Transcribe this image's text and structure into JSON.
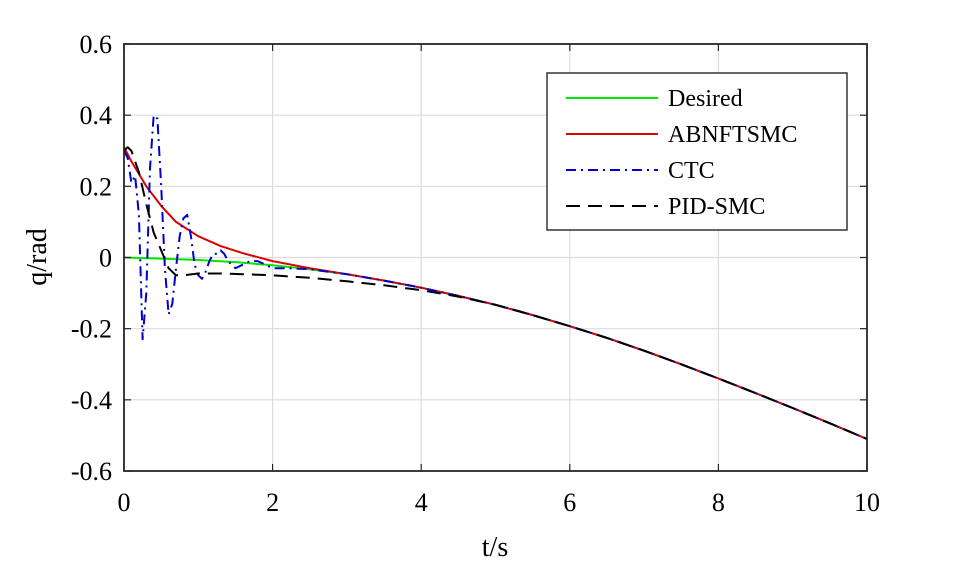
{
  "chart_data": {
    "type": "line",
    "title": "",
    "xlabel": "t/s",
    "ylabel": "q/rad",
    "xlim": [
      0,
      10
    ],
    "ylim": [
      -0.6,
      0.6
    ],
    "xticks": [
      0,
      2,
      4,
      6,
      8,
      10
    ],
    "yticks": [
      0.6,
      0.4,
      0.2,
      0,
      -0.2,
      -0.4,
      -0.6
    ],
    "xtick_labels": [
      "0",
      "2",
      "4",
      "6",
      "8",
      "10"
    ],
    "ytick_labels": [
      "0.6",
      "0.4",
      "0.2",
      "0",
      "-0.2",
      "-0.4",
      "-0.6"
    ],
    "grid": true,
    "legend_position": "top-right",
    "series": [
      {
        "name": "Desired",
        "color": "#00e600",
        "dash": "solid",
        "x": [
          0,
          0.5,
          1,
          1.5,
          2,
          2.5,
          3,
          3.5,
          4,
          4.5,
          5,
          5.5,
          6,
          6.5,
          7,
          7.5,
          8,
          8.5,
          9,
          9.5,
          10
        ],
        "y": [
          0,
          -0.003,
          -0.007,
          -0.013,
          -0.022,
          -0.033,
          -0.047,
          -0.065,
          -0.085,
          -0.108,
          -0.133,
          -0.162,
          -0.193,
          -0.226,
          -0.262,
          -0.3,
          -0.34,
          -0.381,
          -0.423,
          -0.466,
          -0.51
        ]
      },
      {
        "name": "ABNFTSMC",
        "color": "#dd0000",
        "dash": "solid",
        "x": [
          0,
          0.1,
          0.2,
          0.3,
          0.5,
          0.7,
          1,
          1.3,
          1.6,
          2,
          2.5,
          3,
          3.5,
          4,
          4.5,
          5,
          5.5,
          6,
          6.5,
          7,
          7.5,
          8,
          8.5,
          9,
          9.5,
          10
        ],
        "y": [
          0.31,
          0.27,
          0.235,
          0.2,
          0.145,
          0.1,
          0.06,
          0.032,
          0.012,
          -0.01,
          -0.03,
          -0.047,
          -0.065,
          -0.085,
          -0.108,
          -0.133,
          -0.162,
          -0.193,
          -0.226,
          -0.262,
          -0.3,
          -0.34,
          -0.381,
          -0.423,
          -0.466,
          -0.51
        ]
      },
      {
        "name": "CTC",
        "color": "#0000cc",
        "dash": "dashdot",
        "x": [
          0,
          0.05,
          0.1,
          0.15,
          0.2,
          0.25,
          0.3,
          0.35,
          0.4,
          0.45,
          0.5,
          0.55,
          0.6,
          0.65,
          0.7,
          0.75,
          0.8,
          0.85,
          0.9,
          0.95,
          1,
          1.05,
          1.1,
          1.15,
          1.2,
          1.25,
          1.3,
          1.35,
          1.4,
          1.5,
          1.6,
          1.7,
          1.8,
          1.9,
          2,
          2.2,
          2.5,
          3,
          3.5,
          4,
          4.5,
          5,
          5.5,
          6,
          6.5,
          7,
          7.5,
          8,
          8.5,
          9,
          9.5,
          10
        ],
        "y": [
          0.3,
          0.28,
          0.21,
          0.23,
          0.12,
          -0.23,
          -0.1,
          0.25,
          0.4,
          0.39,
          0.2,
          -0.03,
          -0.16,
          -0.13,
          -0.03,
          0.06,
          0.11,
          0.12,
          0.06,
          -0.02,
          -0.05,
          -0.06,
          -0.04,
          -0.01,
          0.01,
          0.01,
          0.02,
          0.01,
          -0.01,
          -0.03,
          -0.02,
          -0.01,
          -0.01,
          -0.02,
          -0.03,
          -0.03,
          -0.033,
          -0.047,
          -0.065,
          -0.085,
          -0.108,
          -0.133,
          -0.162,
          -0.193,
          -0.226,
          -0.262,
          -0.3,
          -0.34,
          -0.381,
          -0.423,
          -0.466,
          -0.51
        ]
      },
      {
        "name": "PID-SMC",
        "color": "#000000",
        "dash": "dashed",
        "x": [
          0,
          0.05,
          0.1,
          0.2,
          0.3,
          0.4,
          0.5,
          0.6,
          0.7,
          0.8,
          1,
          1.3,
          1.6,
          2,
          2.5,
          3,
          3.5,
          4,
          4.5,
          5,
          5.5,
          6,
          6.5,
          7,
          7.5,
          8,
          8.5,
          9,
          9.5,
          10
        ],
        "y": [
          0.3,
          0.31,
          0.3,
          0.24,
          0.15,
          0.07,
          0.02,
          -0.03,
          -0.05,
          -0.05,
          -0.045,
          -0.045,
          -0.047,
          -0.05,
          -0.057,
          -0.067,
          -0.078,
          -0.092,
          -0.11,
          -0.133,
          -0.162,
          -0.193,
          -0.226,
          -0.262,
          -0.3,
          -0.34,
          -0.381,
          -0.423,
          -0.466,
          -0.51
        ]
      }
    ]
  }
}
